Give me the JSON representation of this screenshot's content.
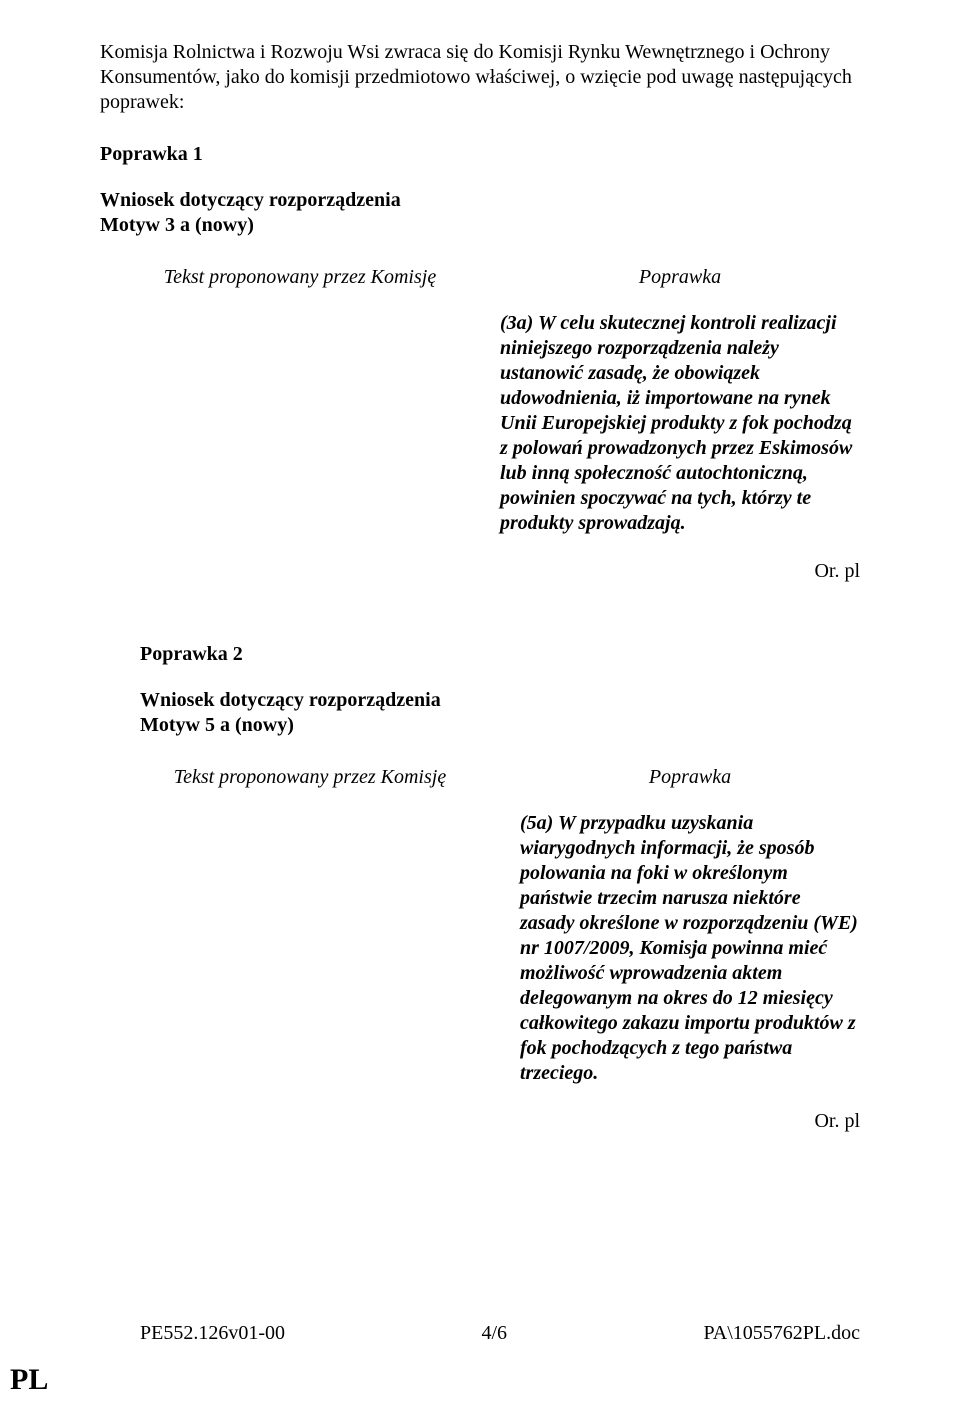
{
  "intro": "Komisja Rolnictwa i Rozwoju Wsi zwraca się do Komisji Rynku Wewnętrznego i Ochrony Konsumentów, jako do komisji przedmiotowo właściwej, o wzięcie pod uwagę następujących poprawek:",
  "amend1": {
    "title": "Poprawka 1",
    "subject_line1": "Wniosek dotyczący rozporządzenia",
    "subject_line2": "Motyw 3 a (nowy)",
    "col_left_head": "Tekst proponowany przez Komisję",
    "col_right_head": "Poprawka",
    "body": "(3a) W celu skutecznej kontroli realizacji niniejszego rozporządzenia należy ustanowić zasadę, że obowiązek udowodnienia, iż importowane na rynek Unii Europejskiej produkty z fok pochodzą z polowań prowadzonych przez Eskimosów lub inną społeczność autochtoniczną, powinien spoczywać na tych, którzy te produkty sprowadzają.",
    "tail": "Or. pl"
  },
  "amend2": {
    "title": "Poprawka 2",
    "subject_line1": "Wniosek dotyczący rozporządzenia",
    "subject_line2": "Motyw 5 a (nowy)",
    "col_left_head": "Tekst proponowany przez Komisję",
    "col_right_head": "Poprawka",
    "body": "(5a) W przypadku uzyskania wiarygodnych informacji, że sposób polowania na foki w określonym państwie trzecim narusza niektóre zasady określone w rozporządzeniu (WE) nr 1007/2009, Komisja powinna mieć możliwość wprowadzenia aktem delegowanym na okres do 12 miesięcy całkowitego zakazu importu produktów z fok pochodzących z tego państwa trzeciego.",
    "tail": "Or. pl"
  },
  "footer": {
    "left": "PE552.126v01-00",
    "center": "4/6",
    "right": "PA\\1055762PL.doc"
  },
  "lang": "PL"
}
